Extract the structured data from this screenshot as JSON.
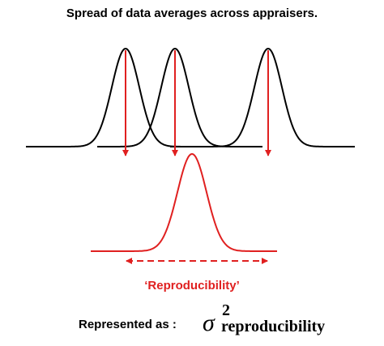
{
  "title": "Spread of data averages across appraisers.",
  "reproducibility_label": "‘Reproducibility’",
  "represented_as": "Represented as :",
  "formula": {
    "symbol": "σ",
    "superscript": "2",
    "subscript": "reproducibility"
  },
  "colors": {
    "curve": "#000000",
    "accent": "#e02020"
  }
}
